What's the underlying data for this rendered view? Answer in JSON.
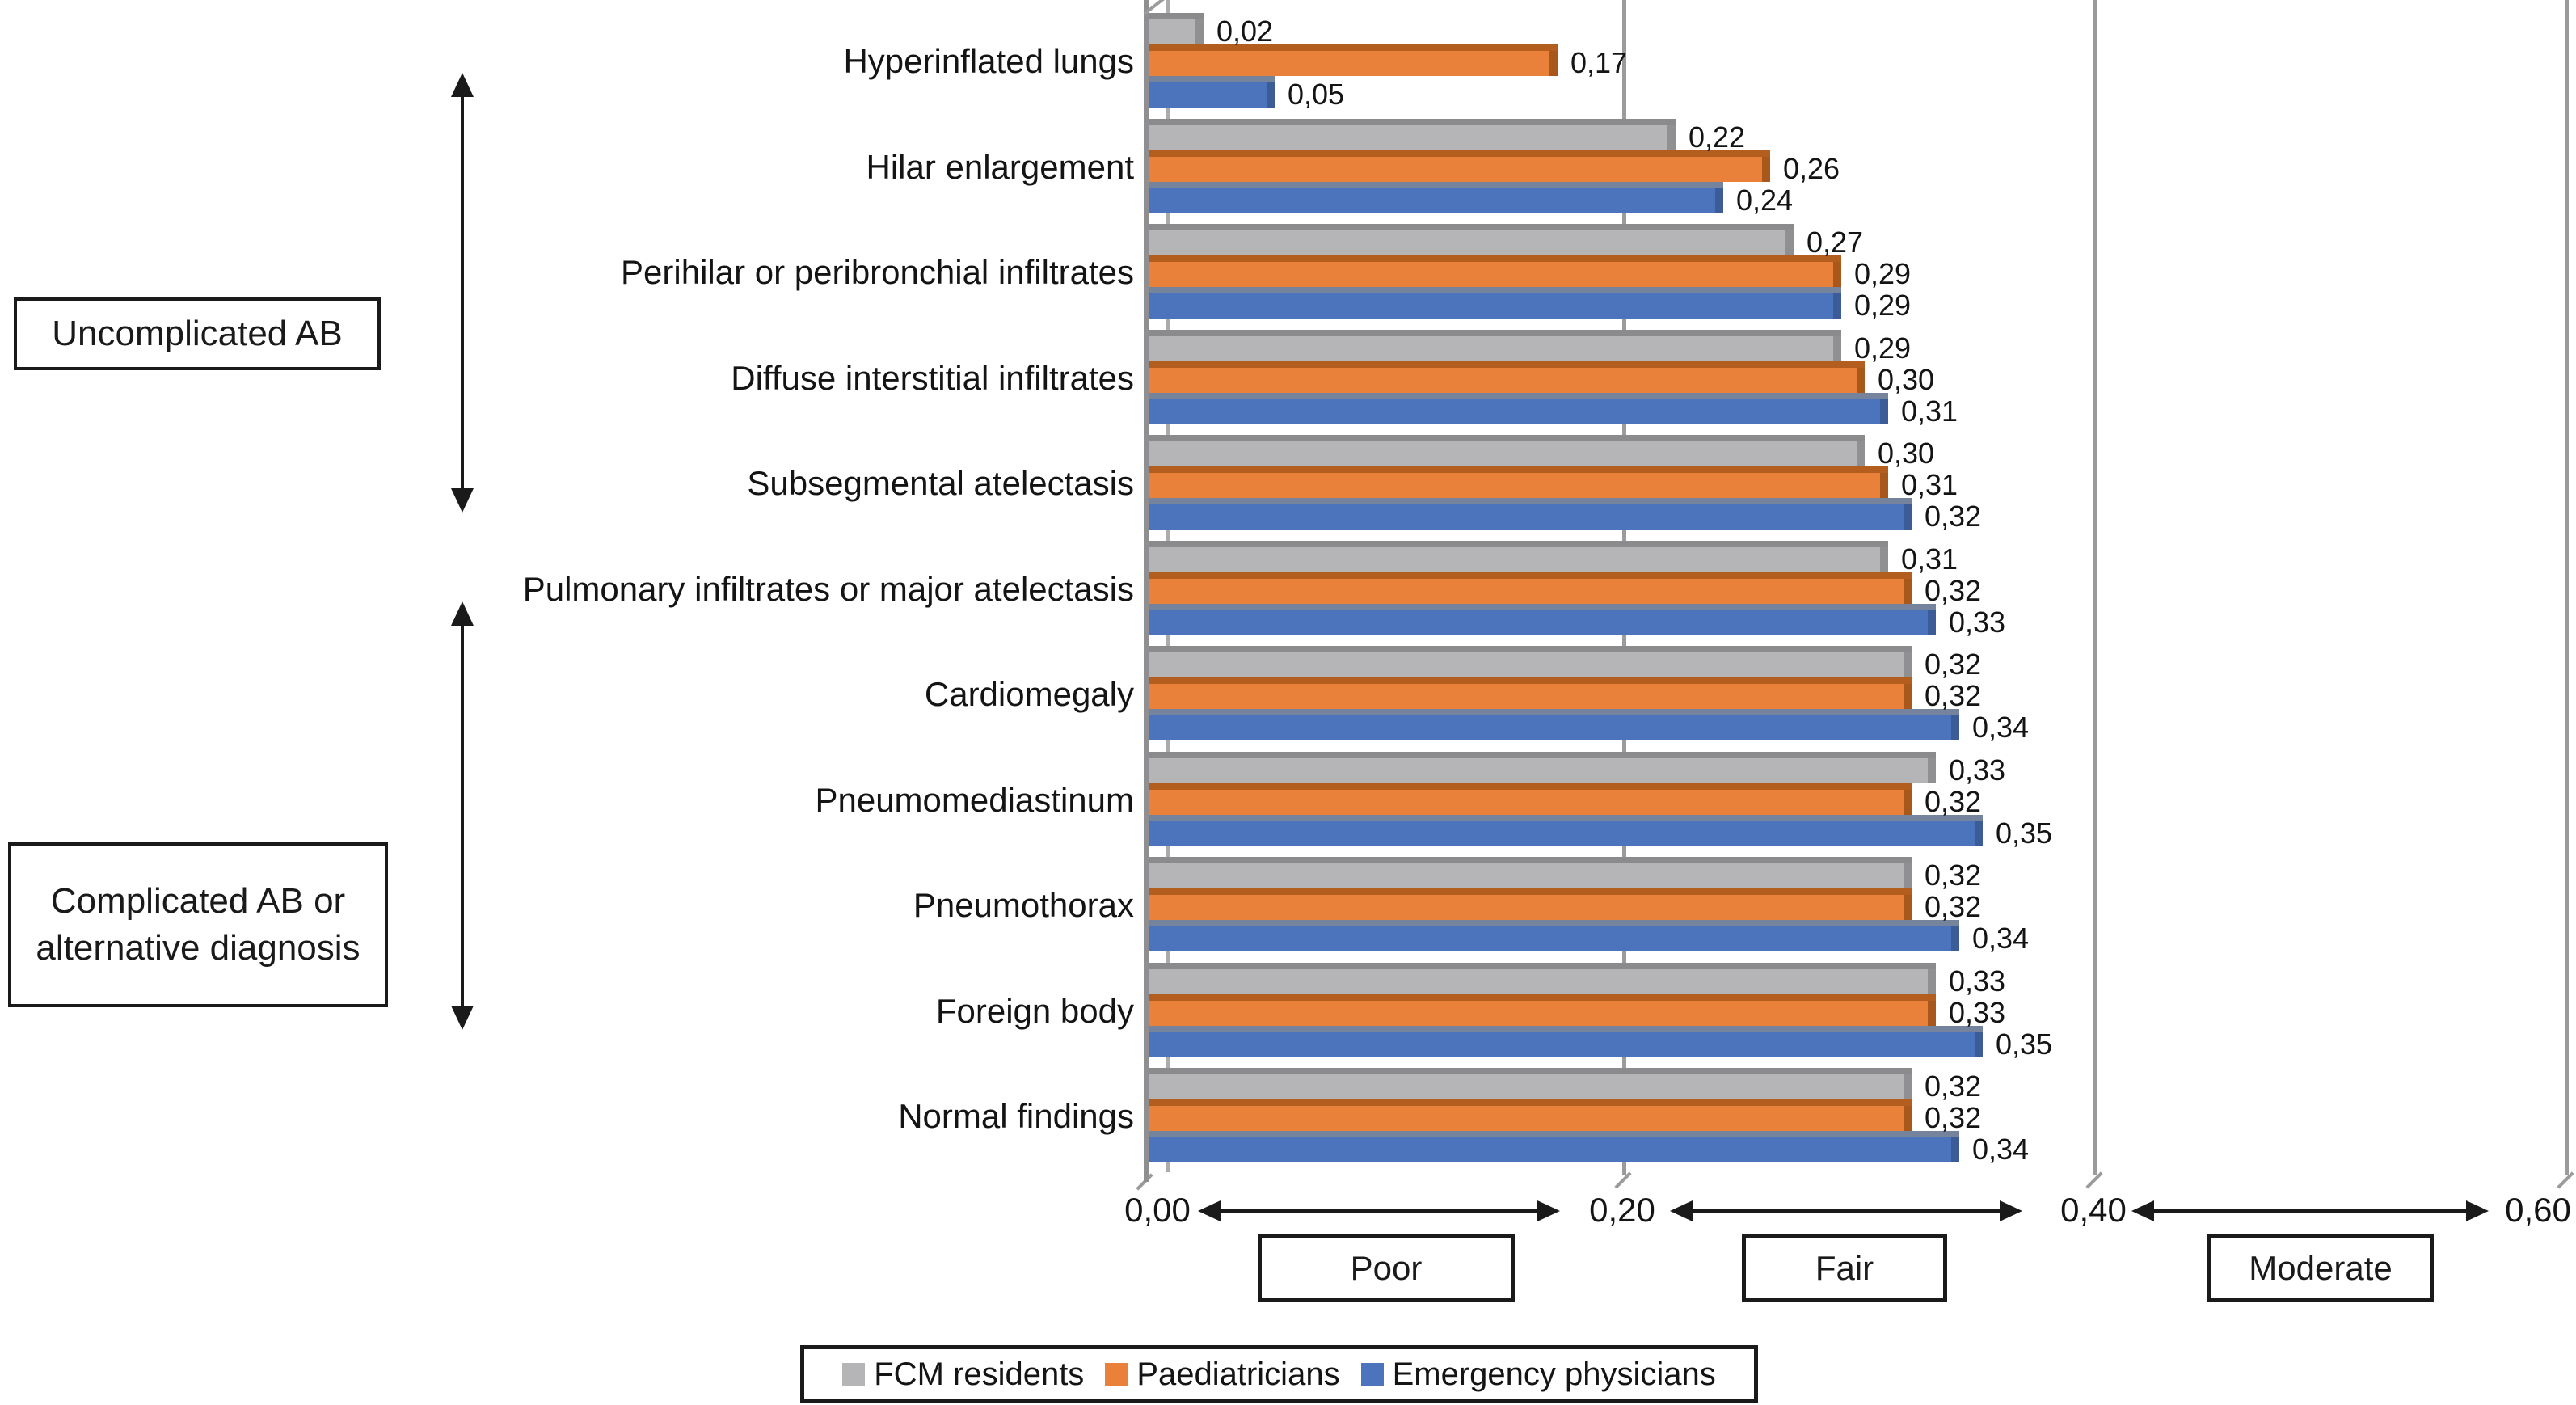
{
  "figure": {
    "annotations": {
      "group1": {
        "label": "Uncomplicated AB"
      },
      "group2": {
        "line1": "Complicated AB or",
        "line2": "alternative diagnosis"
      }
    }
  },
  "chart_data": {
    "type": "bar",
    "orientation": "horizontal",
    "title": "",
    "xlabel": "",
    "ylabel": "",
    "xlim": [
      0.0,
      0.6
    ],
    "grid": true,
    "legend_position": "bottom",
    "decimal_separator": ",",
    "x_ticks": [
      "0,00",
      "0,20",
      "0,40",
      "0,60"
    ],
    "categories": [
      "Hyperinflated lungs",
      "Hilar enlargement",
      "Perihilar or peribronchial infiltrates",
      "Diffuse interstitial infiltrates",
      "Subsegmental atelectasis",
      "Pulmonary infiltrates or major atelectasis",
      "Cardiomegaly",
      "Pneumomediastinum",
      "Pneumothorax",
      "Foreign body",
      "Normal findings"
    ],
    "series": [
      {
        "name": "FCM residents",
        "color": "#b5b5b7",
        "values": [
          0.02,
          0.22,
          0.27,
          0.29,
          0.3,
          0.31,
          0.32,
          0.33,
          0.32,
          0.33,
          0.32
        ],
        "labels": [
          "0,02",
          "0,22",
          "0,27",
          "0,29",
          "0,30",
          "0,31",
          "0,32",
          "0,33",
          "0,32",
          "0,33",
          "0,32"
        ]
      },
      {
        "name": "Paediatricians",
        "color": "#e9813a",
        "values": [
          0.17,
          0.26,
          0.29,
          0.3,
          0.31,
          0.32,
          0.32,
          0.32,
          0.32,
          0.33,
          0.32
        ],
        "labels": [
          "0,17",
          "0,26",
          "0,29",
          "0,30",
          "0,31",
          "0,32",
          "0,32",
          "0,32",
          "0,32",
          "0,33",
          "0,32"
        ]
      },
      {
        "name": "Emergency physicians",
        "color": "#4b74bc",
        "values": [
          0.05,
          0.24,
          0.29,
          0.31,
          0.32,
          0.33,
          0.34,
          0.35,
          0.34,
          0.35,
          0.34
        ],
        "labels": [
          "0,05",
          "0,24",
          "0,29",
          "0,31",
          "0,32",
          "0,33",
          "0,34",
          "0,35",
          "0,34",
          "0,35",
          "0,34"
        ]
      }
    ],
    "ranges": [
      {
        "label": "Poor",
        "from": 0.0,
        "to": 0.2
      },
      {
        "label": "Fair",
        "from": 0.2,
        "to": 0.4
      },
      {
        "label": "Moderate",
        "from": 0.4,
        "to": 0.6
      }
    ]
  }
}
